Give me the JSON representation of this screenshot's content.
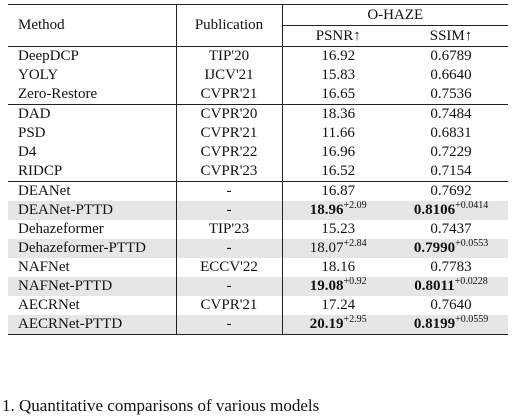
{
  "table": {
    "header": {
      "method": "Method",
      "publication": "Publication",
      "dataset": "O-HAZE",
      "psnr": "PSNR↑",
      "ssim": "SSIM↑"
    },
    "groups": [
      {
        "rows": [
          {
            "method": "DeepDCP",
            "publication": "TIP'20",
            "psnr": "16.92",
            "psnr_gain": "",
            "ssim": "0.6789",
            "ssim_gain": "",
            "bold": false,
            "shaded": false
          },
          {
            "method": "YOLY",
            "publication": "IJCV'21",
            "psnr": "15.83",
            "psnr_gain": "",
            "ssim": "0.6640",
            "ssim_gain": "",
            "bold": false,
            "shaded": false
          },
          {
            "method": "Zero-Restore",
            "publication": "CVPR'21",
            "psnr": "16.65",
            "psnr_gain": "",
            "ssim": "0.7536",
            "ssim_gain": "",
            "bold": false,
            "shaded": false
          }
        ]
      },
      {
        "rows": [
          {
            "method": "DAD",
            "publication": "CVPR'20",
            "psnr": "18.36",
            "psnr_gain": "",
            "ssim": "0.7484",
            "ssim_gain": "",
            "bold": false,
            "shaded": false
          },
          {
            "method": "PSD",
            "publication": "CVPR'21",
            "psnr": "11.66",
            "psnr_gain": "",
            "ssim": "0.6831",
            "ssim_gain": "",
            "bold": false,
            "shaded": false
          },
          {
            "method": "D4",
            "publication": "CVPR'22",
            "psnr": "16.96",
            "psnr_gain": "",
            "ssim": "0.7229",
            "ssim_gain": "",
            "bold": false,
            "shaded": false
          },
          {
            "method": "RIDCP",
            "publication": "CVPR'23",
            "psnr": "16.52",
            "psnr_gain": "",
            "ssim": "0.7154",
            "ssim_gain": "",
            "bold": false,
            "shaded": false
          }
        ]
      },
      {
        "rows": [
          {
            "method": "DEANet",
            "publication": "-",
            "psnr": "16.87",
            "psnr_gain": "",
            "ssim": "0.7692",
            "ssim_gain": "",
            "bold": false,
            "shaded": false
          },
          {
            "method": "DEANet-PTTD",
            "publication": "-",
            "psnr": "18.96",
            "psnr_gain": "+2.09",
            "ssim": "0.8106",
            "ssim_gain": "+0.0414",
            "bold": true,
            "shaded": true
          },
          {
            "method": "Dehazeformer",
            "publication": "TIP'23",
            "psnr": "15.23",
            "psnr_gain": "",
            "ssim": "0.7437",
            "ssim_gain": "",
            "bold": false,
            "shaded": false
          },
          {
            "method": "Dehazeformer-PTTD",
            "publication": "-",
            "psnr": "18.07",
            "psnr_gain": "+2.84",
            "ssim": "0.7990",
            "ssim_gain": "+0.0553",
            "bold": false,
            "bold_ssim": true,
            "shaded": true
          },
          {
            "method": "NAFNet",
            "publication": "ECCV'22",
            "psnr": "18.16",
            "psnr_gain": "",
            "ssim": "0.7783",
            "ssim_gain": "",
            "bold": false,
            "shaded": false
          },
          {
            "method": "NAFNet-PTTD",
            "publication": "-",
            "psnr": "19.08",
            "psnr_gain": "+0.92",
            "ssim": "0.8011",
            "ssim_gain": "+0.0228",
            "bold": true,
            "shaded": true
          },
          {
            "method": "AECRNet",
            "publication": "CVPR'21",
            "psnr": "17.24",
            "psnr_gain": "",
            "ssim": "0.7640",
            "ssim_gain": "",
            "bold": false,
            "shaded": false
          },
          {
            "method": "AECRNet-PTTD",
            "publication": "-",
            "psnr": "20.19",
            "psnr_gain": "+2.95",
            "ssim": "0.8199",
            "ssim_gain": "+0.0559",
            "bold": true,
            "shaded": true
          }
        ]
      }
    ]
  },
  "caption": "1.  Quantitative  comparisons  of  various  models"
}
